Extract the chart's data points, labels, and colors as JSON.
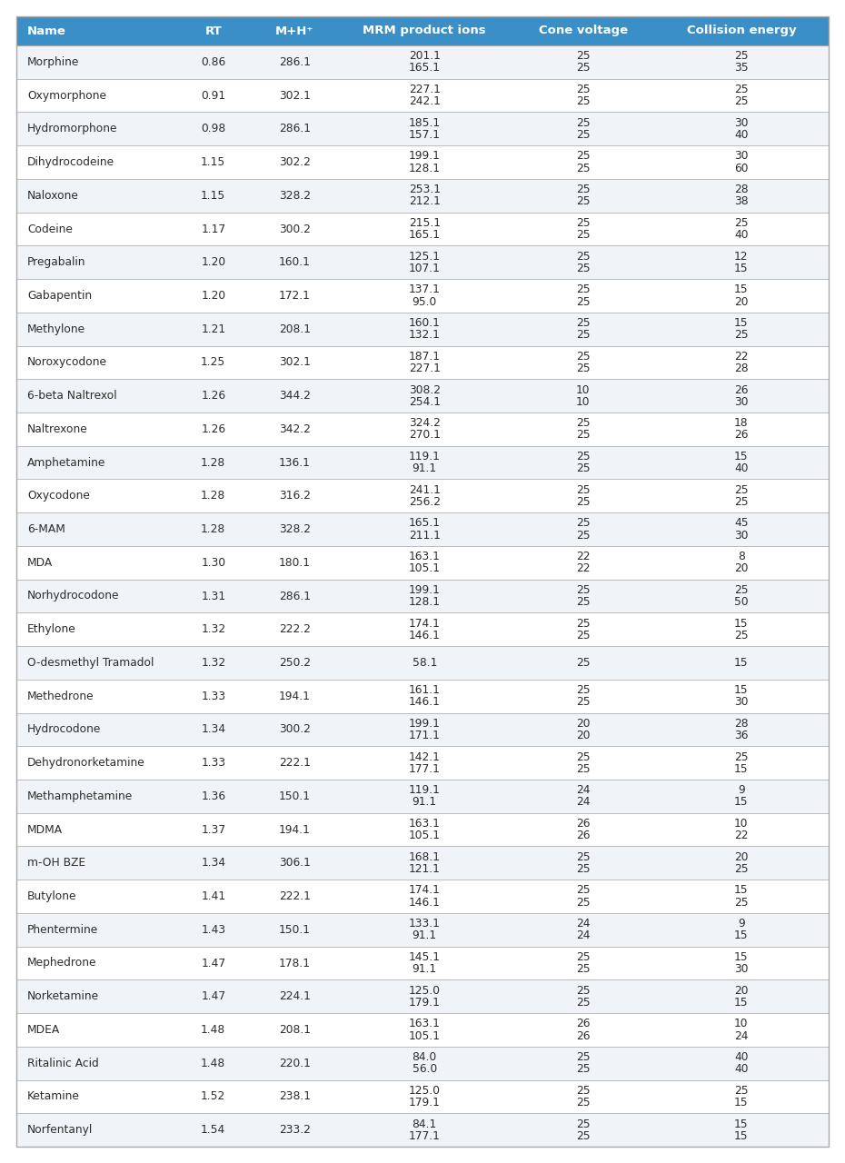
{
  "header_bg": "#3A8FC7",
  "header_text_color": "#FFFFFF",
  "text_color": "#2C2C2C",
  "border_color": "#BBBBBB",
  "columns": [
    "Name",
    "RT",
    "M+H⁺",
    "MRM product ions",
    "Cone voltage",
    "Collision energy"
  ],
  "rows": [
    {
      "name": "Morphine",
      "rt": "0.86",
      "mh": "286.1",
      "mrm": [
        "201.1",
        "165.1"
      ],
      "cone": [
        "25",
        "25"
      ],
      "ce": [
        "25",
        "35"
      ]
    },
    {
      "name": "Oxymorphone",
      "rt": "0.91",
      "mh": "302.1",
      "mrm": [
        "227.1",
        "242.1"
      ],
      "cone": [
        "25",
        "25"
      ],
      "ce": [
        "25",
        "25"
      ]
    },
    {
      "name": "Hydromorphone",
      "rt": "0.98",
      "mh": "286.1",
      "mrm": [
        "185.1",
        "157.1"
      ],
      "cone": [
        "25",
        "25"
      ],
      "ce": [
        "30",
        "40"
      ]
    },
    {
      "name": "Dihydrocodeine",
      "rt": "1.15",
      "mh": "302.2",
      "mrm": [
        "199.1",
        "128.1"
      ],
      "cone": [
        "25",
        "25"
      ],
      "ce": [
        "30",
        "60"
      ]
    },
    {
      "name": "Naloxone",
      "rt": "1.15",
      "mh": "328.2",
      "mrm": [
        "253.1",
        "212.1"
      ],
      "cone": [
        "25",
        "25"
      ],
      "ce": [
        "28",
        "38"
      ]
    },
    {
      "name": "Codeine",
      "rt": "1.17",
      "mh": "300.2",
      "mrm": [
        "215.1",
        "165.1"
      ],
      "cone": [
        "25",
        "25"
      ],
      "ce": [
        "25",
        "40"
      ]
    },
    {
      "name": "Pregabalin",
      "rt": "1.20",
      "mh": "160.1",
      "mrm": [
        "125.1",
        "107.1"
      ],
      "cone": [
        "25",
        "25"
      ],
      "ce": [
        "12",
        "15"
      ]
    },
    {
      "name": "Gabapentin",
      "rt": "1.20",
      "mh": "172.1",
      "mrm": [
        "137.1",
        "95.0"
      ],
      "cone": [
        "25",
        "25"
      ],
      "ce": [
        "15",
        "20"
      ]
    },
    {
      "name": "Methylone",
      "rt": "1.21",
      "mh": "208.1",
      "mrm": [
        "160.1",
        "132.1"
      ],
      "cone": [
        "25",
        "25"
      ],
      "ce": [
        "15",
        "25"
      ]
    },
    {
      "name": "Noroxycodone",
      "rt": "1.25",
      "mh": "302.1",
      "mrm": [
        "187.1",
        "227.1"
      ],
      "cone": [
        "25",
        "25"
      ],
      "ce": [
        "22",
        "28"
      ]
    },
    {
      "name": "6-beta Naltrexol",
      "rt": "1.26",
      "mh": "344.2",
      "mrm": [
        "308.2",
        "254.1"
      ],
      "cone": [
        "10",
        "10"
      ],
      "ce": [
        "26",
        "30"
      ]
    },
    {
      "name": "Naltrexone",
      "rt": "1.26",
      "mh": "342.2",
      "mrm": [
        "324.2",
        "270.1"
      ],
      "cone": [
        "25",
        "25"
      ],
      "ce": [
        "18",
        "26"
      ]
    },
    {
      "name": "Amphetamine",
      "rt": "1.28",
      "mh": "136.1",
      "mrm": [
        "119.1",
        "91.1"
      ],
      "cone": [
        "25",
        "25"
      ],
      "ce": [
        "15",
        "40"
      ]
    },
    {
      "name": "Oxycodone",
      "rt": "1.28",
      "mh": "316.2",
      "mrm": [
        "241.1",
        "256.2"
      ],
      "cone": [
        "25",
        "25"
      ],
      "ce": [
        "25",
        "25"
      ]
    },
    {
      "name": "6-MAM",
      "rt": "1.28",
      "mh": "328.2",
      "mrm": [
        "165.1",
        "211.1"
      ],
      "cone": [
        "25",
        "25"
      ],
      "ce": [
        "45",
        "30"
      ]
    },
    {
      "name": "MDA",
      "rt": "1.30",
      "mh": "180.1",
      "mrm": [
        "163.1",
        "105.1"
      ],
      "cone": [
        "22",
        "22"
      ],
      "ce": [
        "8",
        "20"
      ]
    },
    {
      "name": "Norhydrocodone",
      "rt": "1.31",
      "mh": "286.1",
      "mrm": [
        "199.1",
        "128.1"
      ],
      "cone": [
        "25",
        "25"
      ],
      "ce": [
        "25",
        "50"
      ]
    },
    {
      "name": "Ethylone",
      "rt": "1.32",
      "mh": "222.2",
      "mrm": [
        "174.1",
        "146.1"
      ],
      "cone": [
        "25",
        "25"
      ],
      "ce": [
        "15",
        "25"
      ]
    },
    {
      "name": "O-desmethyl Tramadol",
      "rt": "1.32",
      "mh": "250.2",
      "mrm": [
        "58.1"
      ],
      "cone": [
        "25"
      ],
      "ce": [
        "15"
      ]
    },
    {
      "name": "Methedrone",
      "rt": "1.33",
      "mh": "194.1",
      "mrm": [
        "161.1",
        "146.1"
      ],
      "cone": [
        "25",
        "25"
      ],
      "ce": [
        "15",
        "30"
      ]
    },
    {
      "name": "Hydrocodone",
      "rt": "1.34",
      "mh": "300.2",
      "mrm": [
        "199.1",
        "171.1"
      ],
      "cone": [
        "20",
        "20"
      ],
      "ce": [
        "28",
        "36"
      ]
    },
    {
      "name": "Dehydronorketamine",
      "rt": "1.33",
      "mh": "222.1",
      "mrm": [
        "142.1",
        "177.1"
      ],
      "cone": [
        "25",
        "25"
      ],
      "ce": [
        "25",
        "15"
      ]
    },
    {
      "name": "Methamphetamine",
      "rt": "1.36",
      "mh": "150.1",
      "mrm": [
        "119.1",
        "91.1"
      ],
      "cone": [
        "24",
        "24"
      ],
      "ce": [
        "9",
        "15"
      ]
    },
    {
      "name": "MDMA",
      "rt": "1.37",
      "mh": "194.1",
      "mrm": [
        "163.1",
        "105.1"
      ],
      "cone": [
        "26",
        "26"
      ],
      "ce": [
        "10",
        "22"
      ]
    },
    {
      "name": "m-OH BZE",
      "rt": "1.34",
      "mh": "306.1",
      "mrm": [
        "168.1",
        "121.1"
      ],
      "cone": [
        "25",
        "25"
      ],
      "ce": [
        "20",
        "25"
      ]
    },
    {
      "name": "Butylone",
      "rt": "1.41",
      "mh": "222.1",
      "mrm": [
        "174.1",
        "146.1"
      ],
      "cone": [
        "25",
        "25"
      ],
      "ce": [
        "15",
        "25"
      ]
    },
    {
      "name": "Phentermine",
      "rt": "1.43",
      "mh": "150.1",
      "mrm": [
        "133.1",
        "91.1"
      ],
      "cone": [
        "24",
        "24"
      ],
      "ce": [
        "9",
        "15"
      ]
    },
    {
      "name": "Mephedrone",
      "rt": "1.47",
      "mh": "178.1",
      "mrm": [
        "145.1",
        "91.1"
      ],
      "cone": [
        "25",
        "25"
      ],
      "ce": [
        "15",
        "30"
      ]
    },
    {
      "name": "Norketamine",
      "rt": "1.47",
      "mh": "224.1",
      "mrm": [
        "125.0",
        "179.1"
      ],
      "cone": [
        "25",
        "25"
      ],
      "ce": [
        "20",
        "15"
      ]
    },
    {
      "name": "MDEA",
      "rt": "1.48",
      "mh": "208.1",
      "mrm": [
        "163.1",
        "105.1"
      ],
      "cone": [
        "26",
        "26"
      ],
      "ce": [
        "10",
        "24"
      ]
    },
    {
      "name": "Ritalinic Acid",
      "rt": "1.48",
      "mh": "220.1",
      "mrm": [
        "84.0",
        "56.0"
      ],
      "cone": [
        "25",
        "25"
      ],
      "ce": [
        "40",
        "40"
      ]
    },
    {
      "name": "Ketamine",
      "rt": "1.52",
      "mh": "238.1",
      "mrm": [
        "125.0",
        "179.1"
      ],
      "cone": [
        "25",
        "25"
      ],
      "ce": [
        "25",
        "15"
      ]
    },
    {
      "name": "Norfentanyl",
      "rt": "1.54",
      "mh": "233.2",
      "mrm": [
        "84.1",
        "177.1"
      ],
      "cone": [
        "25",
        "25"
      ],
      "ce": [
        "15",
        "15"
      ]
    }
  ]
}
